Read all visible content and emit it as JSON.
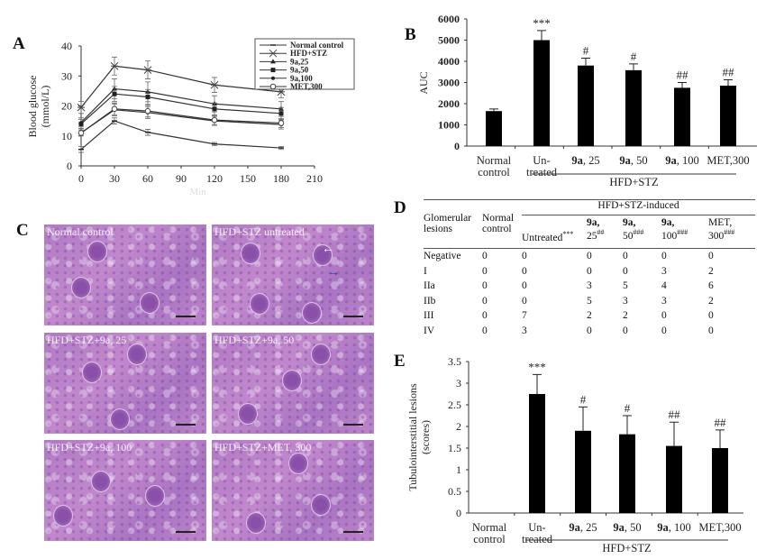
{
  "panels": {
    "A": "A",
    "B": "B",
    "C": "C",
    "D": "D",
    "E": "E"
  },
  "chart_data": [
    {
      "panel": "A",
      "type": "line",
      "xlabel": "Min",
      "ylabel": [
        "Blood glucose",
        "(mmol/L)"
      ],
      "xlim": [
        0,
        210
      ],
      "ylim": [
        0,
        40
      ],
      "xticks": [
        "0",
        "30",
        "60",
        "90",
        "120",
        "150",
        "180",
        "210"
      ],
      "yticks": [
        "0",
        "10",
        "20",
        "30",
        "40"
      ],
      "legend_position": "top-right",
      "x": [
        0,
        30,
        60,
        120,
        180
      ],
      "series": [
        {
          "name": "Normal control",
          "marker": "dash",
          "values": [
            5.5,
            15,
            11.2,
            7.3,
            6
          ],
          "errors": [
            1,
            1,
            1,
            0.5,
            0.5
          ]
        },
        {
          "name": "HFD+STZ",
          "marker": "x",
          "values": [
            19.5,
            33.3,
            32,
            27,
            24.7
          ],
          "errors": [
            2,
            3,
            3,
            2.5,
            2
          ]
        },
        {
          "name": "9a,25",
          "marker": "triangle",
          "values": [
            14.5,
            25.7,
            24.7,
            20.7,
            19
          ],
          "errors": [
            1.5,
            3.3,
            3.3,
            2.7,
            2.5
          ]
        },
        {
          "name": "9a,50",
          "marker": "square",
          "values": [
            14,
            24,
            23,
            19,
            17.5
          ],
          "errors": [
            1.5,
            2.5,
            2.5,
            2,
            2
          ]
        },
        {
          "name": "9a,100",
          "marker": "dot",
          "values": [
            11,
            18.7,
            17.8,
            15,
            13.8
          ],
          "errors": [
            1,
            2,
            2,
            1.5,
            1.5
          ]
        },
        {
          "name": "MET,300",
          "marker": "circle",
          "values": [
            11,
            19,
            18.3,
            15.3,
            14.3
          ],
          "errors": [
            1,
            2,
            2,
            1.5,
            1.5
          ]
        }
      ]
    },
    {
      "panel": "B",
      "type": "bar",
      "ylabel": "AUC",
      "ylim": [
        0,
        6000
      ],
      "yticks": [
        "0",
        "1000",
        "2000",
        "3000",
        "4000",
        "5000",
        "6000"
      ],
      "categories": [
        [
          "Normal",
          "control"
        ],
        [
          "Un-",
          "treated"
        ],
        [
          "9a, 25"
        ],
        [
          "9a, 50"
        ],
        [
          "9a, 100"
        ],
        [
          "MET,300"
        ]
      ],
      "values": [
        1650,
        5000,
        3800,
        3580,
        2750,
        2850
      ],
      "errors": [
        100,
        450,
        350,
        300,
        250,
        280
      ],
      "annotations": [
        "",
        "***",
        "#",
        "#",
        "##",
        "##"
      ],
      "group_label": "HFD+STZ",
      "bar_color": "#000000"
    },
    {
      "panel": "E",
      "type": "bar",
      "ylabel": [
        "Tubulointerstitial  lesions",
        "(scores)"
      ],
      "ylim": [
        0,
        3.5
      ],
      "yticks": [
        "0",
        "0.5",
        "1",
        "1.5",
        "2",
        "2.5",
        "3",
        "3.5"
      ],
      "categories": [
        [
          "Normal",
          "control"
        ],
        [
          "Un-",
          "treated"
        ],
        [
          "9a, 25"
        ],
        [
          "9a, 50"
        ],
        [
          "9a, 100"
        ],
        [
          "MET,300"
        ]
      ],
      "values": [
        0,
        2.75,
        1.9,
        1.82,
        1.55,
        1.5
      ],
      "errors": [
        0,
        0.45,
        0.55,
        0.43,
        0.55,
        0.42
      ],
      "annotations": [
        "",
        "***",
        "#",
        "#",
        "##",
        "##"
      ],
      "group_label": "HFD+STZ",
      "bar_color": "#000000"
    },
    {
      "panel": "D",
      "type": "table",
      "group_header": "HFD+STZ-induced",
      "columns": [
        {
          "line1": "Glomerular",
          "line2": "lesions",
          "sup": ""
        },
        {
          "line1": "Normal",
          "line2": "control",
          "sup": ""
        },
        {
          "line1": "",
          "line2": "Untreated",
          "sup": "***"
        },
        {
          "line1": "9a,",
          "line2": "25",
          "sup": "##"
        },
        {
          "line1": "9a,",
          "line2": "50",
          "sup": "###"
        },
        {
          "line1": "9a,",
          "line2": "100",
          "sup": "###"
        },
        {
          "line1": "MET,",
          "line2": "300",
          "sup": "###"
        }
      ],
      "rows": [
        [
          "Negative",
          "0",
          "0",
          "0",
          "0",
          "0",
          "0"
        ],
        [
          "I",
          "0",
          "0",
          "0",
          "0",
          "3",
          "2"
        ],
        [
          "IIa",
          "0",
          "0",
          "3",
          "5",
          "4",
          "6"
        ],
        [
          "IIb",
          "0",
          "0",
          "5",
          "3",
          "3",
          "2"
        ],
        [
          "III",
          "0",
          "7",
          "2",
          "2",
          "0",
          "0"
        ],
        [
          "IV",
          "0",
          "3",
          "0",
          "0",
          "0",
          "0"
        ]
      ]
    }
  ],
  "histology": {
    "images": [
      {
        "label": "Normal control"
      },
      {
        "label": "HFD+STZ untreated"
      },
      {
        "label": "HFD+STZ+9a, 25"
      },
      {
        "label": "HFD+STZ+9a, 50"
      },
      {
        "label": "HFD+STZ+9a, 100"
      },
      {
        "label": "HFD+STZ+MET, 300"
      }
    ],
    "arrow_colors": {
      "white_arrow": "#ffffff",
      "blue_arrow": "#2b3f9e"
    },
    "stain_color": "#b27cc4"
  }
}
